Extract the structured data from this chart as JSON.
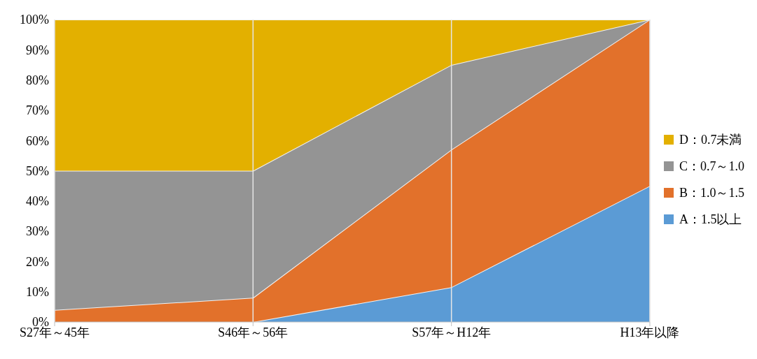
{
  "chart_data": {
    "type": "area",
    "stacked": true,
    "categories": [
      "S27年～45年",
      "S46年～56年",
      "S57年～H12年",
      "H13年以降"
    ],
    "series": [
      {
        "name": "A：1.5以上",
        "color": "#5b9bd5",
        "values": [
          0,
          0,
          11.5,
          45
        ]
      },
      {
        "name": "B：1.0～1.5",
        "color": "#e2712b",
        "values": [
          4,
          8,
          45.5,
          55
        ]
      },
      {
        "name": "C：0.7～1.0",
        "color": "#949494",
        "values": [
          46,
          42,
          28,
          0
        ]
      },
      {
        "name": "D：0.7未満",
        "color": "#e3b000",
        "values": [
          50,
          50,
          15,
          0
        ]
      }
    ],
    "ylim": [
      0,
      100
    ],
    "yticks": [
      {
        "value": 0,
        "label": "0%"
      },
      {
        "value": 10,
        "label": "10%"
      },
      {
        "value": 20,
        "label": "20%"
      },
      {
        "value": 30,
        "label": "30%"
      },
      {
        "value": 40,
        "label": "40%"
      },
      {
        "value": 50,
        "label": "50%"
      },
      {
        "value": 60,
        "label": "60%"
      },
      {
        "value": 70,
        "label": "70%"
      },
      {
        "value": 80,
        "label": "80%"
      },
      {
        "value": 90,
        "label": "90%"
      },
      {
        "value": 100,
        "label": "100%"
      }
    ],
    "grid": "x",
    "legend": "right"
  }
}
